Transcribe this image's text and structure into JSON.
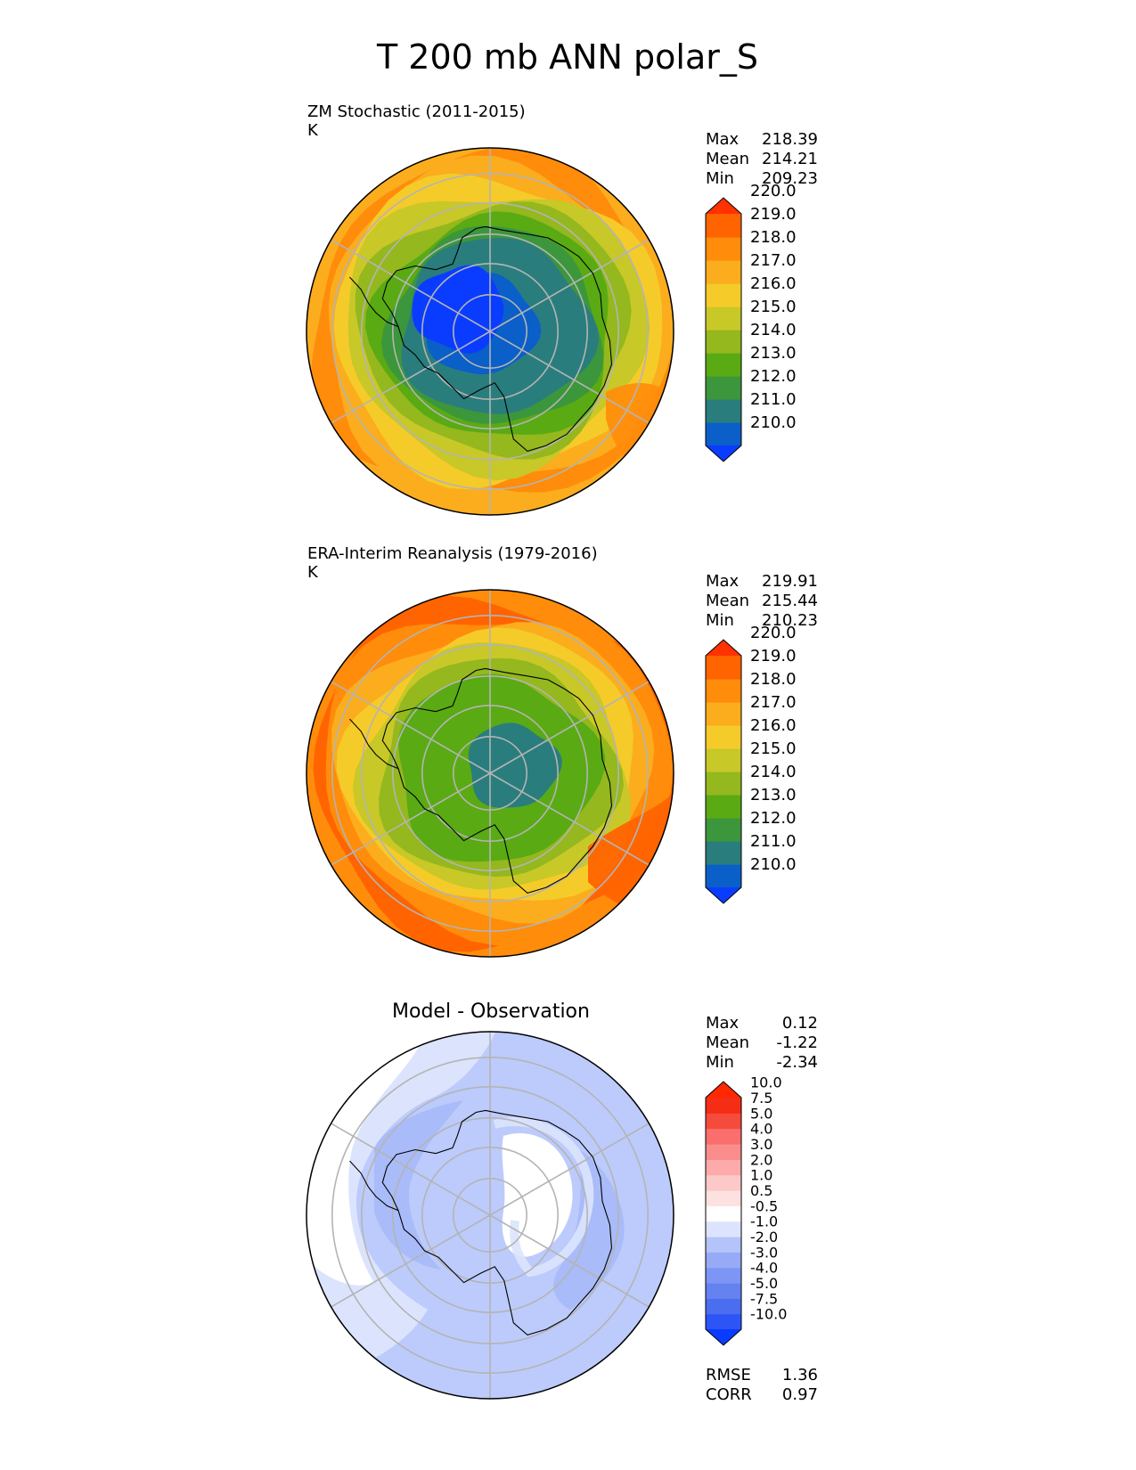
{
  "figure": {
    "title": "T 200 mb ANN polar_S"
  },
  "chart_data": [
    {
      "type": "heatmap",
      "projection": "south-polar-stereographic",
      "title": "ZM Stochastic (2011-2015)",
      "units": "K",
      "stats": [
        {
          "label": "Max",
          "value": "218.39"
        },
        {
          "label": "Mean",
          "value": "214.21"
        },
        {
          "label": "Min",
          "value": "209.23"
        }
      ],
      "colorbar": {
        "ticks": [
          "210.0",
          "211.0",
          "212.0",
          "213.0",
          "214.0",
          "215.0",
          "216.0",
          "217.0",
          "218.0",
          "219.0",
          "220.0"
        ],
        "colors": [
          "#0a3cff",
          "#0a5fc8",
          "#2a7d7d",
          "#3c963c",
          "#5aaa14",
          "#94b81e",
          "#c8c828",
          "#f5cb2a",
          "#fbad1e",
          "#ff8c0a",
          "#ff6400",
          "#ff3200"
        ],
        "extend": "both"
      },
      "rings": [
        {
          "value": 211.0,
          "r": 0.5
        },
        {
          "value": 212.0,
          "r": 0.56
        },
        {
          "value": 213.0,
          "r": 0.63
        },
        {
          "value": 214.0,
          "r": 0.71
        },
        {
          "value": 215.0,
          "r": 0.79
        },
        {
          "value": 216.0,
          "r": 0.86
        },
        {
          "value": 217.0,
          "r": 0.91
        },
        {
          "value": 218.0,
          "r": 0.97
        }
      ],
      "core": {
        "value": 210.0,
        "r": 0.29
      }
    },
    {
      "type": "heatmap",
      "projection": "south-polar-stereographic",
      "title": "ERA-Interim Reanalysis (1979-2016)",
      "units": "K",
      "stats": [
        {
          "label": "Max",
          "value": "219.91"
        },
        {
          "label": "Mean",
          "value": "215.44"
        },
        {
          "label": "Min",
          "value": "210.23"
        }
      ],
      "colorbar": {
        "ticks": [
          "210.0",
          "211.0",
          "212.0",
          "213.0",
          "214.0",
          "215.0",
          "216.0",
          "217.0",
          "218.0",
          "219.0",
          "220.0"
        ],
        "colors": [
          "#0a3cff",
          "#0a5fc8",
          "#2a7d7d",
          "#3c963c",
          "#5aaa14",
          "#94b81e",
          "#c8c828",
          "#f5cb2a",
          "#fbad1e",
          "#ff8c0a",
          "#ff6400",
          "#ff3200"
        ],
        "extend": "both"
      },
      "rings": [
        {
          "value": 213.0,
          "r": 0.53
        },
        {
          "value": 214.0,
          "r": 0.62
        },
        {
          "value": 215.0,
          "r": 0.7
        },
        {
          "value": 216.0,
          "r": 0.77
        },
        {
          "value": 217.0,
          "r": 0.83
        },
        {
          "value": 218.0,
          "r": 0.91
        },
        {
          "value": 219.0,
          "r": 0.97
        }
      ],
      "core": {
        "value": 211.0,
        "r": 0.24
      }
    },
    {
      "type": "heatmap",
      "projection": "south-polar-stereographic",
      "title": "Model - Observation",
      "units": "",
      "stats": [
        {
          "label": "Max",
          "value": "0.12"
        },
        {
          "label": "Mean",
          "value": "-1.22"
        },
        {
          "label": "Min",
          "value": "-2.34"
        }
      ],
      "extra_stats": [
        {
          "label": "RMSE",
          "value": "1.36"
        },
        {
          "label": "CORR",
          "value": "0.97"
        }
      ],
      "colorbar": {
        "ticks": [
          "-10.0",
          "-7.5",
          "-5.0",
          "-4.0",
          "-3.0",
          "-2.0",
          "-1.0",
          "-0.5",
          "0.5",
          "1.0",
          "2.0",
          "3.0",
          "4.0",
          "5.0",
          "7.5",
          "10.0"
        ],
        "colors": [
          "#0a3cff",
          "#2d55f5",
          "#4b6ef0",
          "#6482f0",
          "#7d96f5",
          "#96aaf5",
          "#b4c3fa",
          "#dce4fd",
          "#ffffff",
          "#fde1e1",
          "#fcc8c8",
          "#fcaaaa",
          "#fa8c8c",
          "#fa6e6e",
          "#f54b3c",
          "#f52d14",
          "#ff2800"
        ],
        "extend": "both"
      },
      "base": {
        "value": -1.5,
        "color": "#bccbfb"
      },
      "white_blob": {
        "value": 0.0
      },
      "light_region": {
        "value": -0.7
      }
    }
  ]
}
